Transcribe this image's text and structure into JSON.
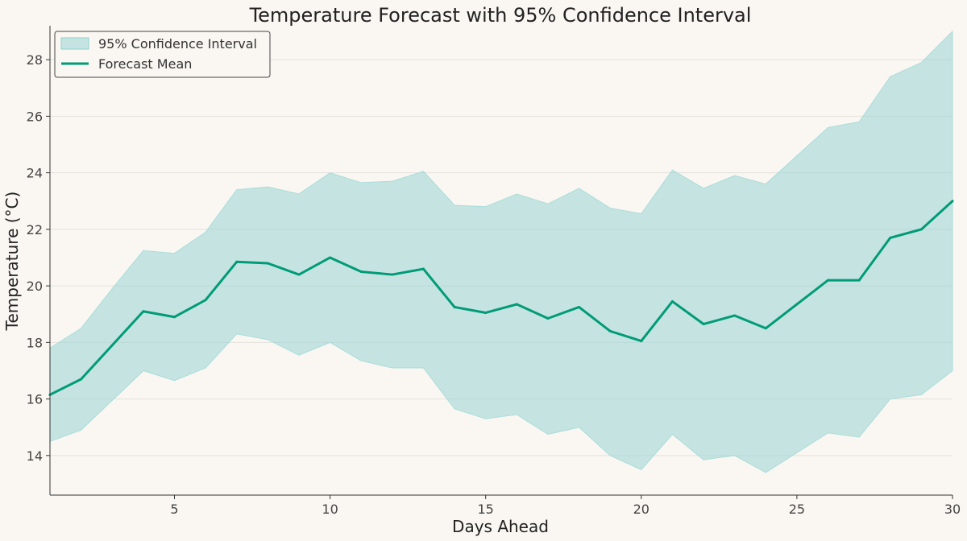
{
  "chart_data": {
    "type": "line",
    "title": "Temperature Forecast with 95% Confidence Interval",
    "xlabel": "Days Ahead",
    "ylabel": "Temperature (°C)",
    "xlim": [
      1,
      30
    ],
    "ylim": [
      12.6,
      29.2
    ],
    "xticks": [
      5,
      10,
      15,
      20,
      25,
      30
    ],
    "yticks": [
      14,
      16,
      18,
      20,
      22,
      24,
      26,
      28
    ],
    "grid": "horizontal",
    "legend_position": "top-left",
    "x": [
      1,
      2,
      3,
      4,
      5,
      6,
      7,
      8,
      9,
      10,
      11,
      12,
      13,
      14,
      15,
      16,
      17,
      18,
      19,
      20,
      21,
      22,
      23,
      24,
      25,
      26,
      27,
      28,
      29,
      30
    ],
    "series": [
      {
        "name": "Forecast Mean",
        "kind": "line",
        "color": "#009b77",
        "values": [
          16.15,
          16.7,
          17.9,
          19.1,
          18.9,
          19.5,
          20.85,
          20.8,
          20.4,
          21.0,
          20.5,
          20.4,
          20.6,
          19.25,
          19.05,
          19.35,
          18.85,
          19.25,
          18.4,
          18.05,
          19.45,
          18.65,
          18.95,
          18.5,
          19.35,
          20.2,
          20.2,
          21.7,
          22.0,
          23.0
        ]
      },
      {
        "name": "95% Confidence Interval",
        "kind": "band",
        "color": "#8fd1cf",
        "lower": [
          14.5,
          14.9,
          15.95,
          17.0,
          16.65,
          17.1,
          18.3,
          18.1,
          17.55,
          18.0,
          17.35,
          17.1,
          17.1,
          15.65,
          15.3,
          15.45,
          14.75,
          15.0,
          14.0,
          13.5,
          14.75,
          13.85,
          14.0,
          13.4,
          14.1,
          14.8,
          14.65,
          16.0,
          16.15,
          17.0
        ],
        "upper": [
          17.8,
          18.5,
          19.9,
          21.25,
          21.15,
          21.9,
          23.4,
          23.5,
          23.25,
          24.0,
          23.65,
          23.7,
          24.05,
          22.85,
          22.8,
          23.25,
          22.9,
          23.45,
          22.75,
          22.55,
          24.1,
          23.45,
          23.9,
          23.6,
          24.6,
          25.6,
          25.8,
          27.4,
          27.9,
          29.0
        ]
      }
    ],
    "legend": {
      "entries": [
        "95% Confidence Interval",
        "Forecast Mean"
      ]
    },
    "colors": {
      "background": "#faf7f2",
      "line": "#009b77",
      "band": "#8fd1cf",
      "band_edge": "#a8dcda",
      "grid": "#e4e1dc",
      "axis": "#333333"
    }
  }
}
